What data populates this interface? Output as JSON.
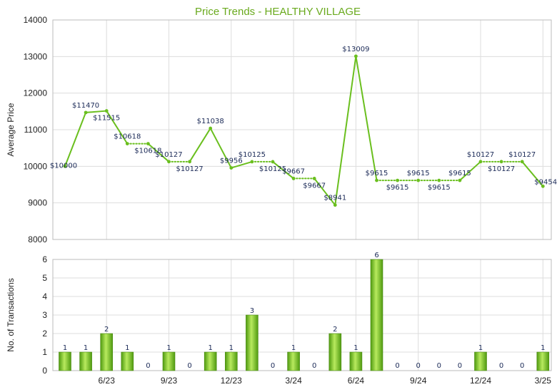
{
  "chart_data": [
    {
      "type": "line",
      "title": "Price Trends - HEALTHY VILLAGE",
      "ylabel": "Average Price",
      "ylim": [
        8000,
        14000
      ],
      "yticks": [
        "8000",
        "9000",
        "10000",
        "11000",
        "12000",
        "13000",
        "14000"
      ],
      "grid": true,
      "series": [
        {
          "color": "#6abf1e",
          "x": [
            "2023-04",
            "2023-05",
            "2023-06",
            "2023-07",
            "2023-08",
            "2023-09",
            "2023-10",
            "2023-11",
            "2023-12",
            "2024-01",
            "2024-02",
            "2024-03",
            "2024-04",
            "2024-05",
            "2024-06",
            "2024-07",
            "2024-08",
            "2024-09",
            "2024-10",
            "2024-11",
            "2024-12",
            "2025-01",
            "2025-02",
            "2025-03"
          ],
          "values": [
            10000,
            11470,
            11515,
            10618,
            10618,
            10127,
            10127,
            11038,
            9956,
            10125,
            10125,
            9667,
            9667,
            8941,
            13009,
            9615,
            9615,
            9615,
            9615,
            9615,
            10127,
            10127,
            10127,
            9454
          ],
          "labels": [
            "$10000",
            "$11470",
            "$11515",
            "$10618",
            "$10618",
            "$10127",
            "$10127",
            "$11038",
            "$9956",
            "$10125",
            "$10125",
            "$9667",
            "$9667",
            "$8941",
            "$13009",
            "$9615",
            "$9615",
            "$9615",
            "$9615",
            "$9615",
            "$10127",
            "$10127",
            "$10127",
            "$9454"
          ],
          "dotted_segments": [
            3,
            5,
            9,
            11,
            15,
            16,
            17,
            18,
            20,
            21
          ]
        }
      ]
    },
    {
      "type": "bar",
      "ylabel": "No. of Transactions",
      "ylim": [
        0,
        6
      ],
      "yticks": [
        "0",
        "1",
        "2",
        "3",
        "4",
        "5",
        "6"
      ],
      "categories": [
        "2023-04",
        "2023-05",
        "2023-06",
        "2023-07",
        "2023-08",
        "2023-09",
        "2023-10",
        "2023-11",
        "2023-12",
        "2024-01",
        "2024-02",
        "2024-03",
        "2024-04",
        "2024-05",
        "2024-06",
        "2024-07",
        "2024-08",
        "2024-09",
        "2024-10",
        "2024-11",
        "2024-12",
        "2025-01",
        "2025-02",
        "2025-03"
      ],
      "values": [
        1,
        1,
        2,
        1,
        0,
        1,
        0,
        1,
        1,
        3,
        0,
        1,
        0,
        2,
        1,
        6,
        0,
        0,
        0,
        0,
        1,
        0,
        0,
        1
      ],
      "xtick_labels": [
        "6/23",
        "9/23",
        "12/23",
        "3/24",
        "6/24",
        "9/24",
        "12/24",
        "3/25"
      ],
      "xtick_index": [
        2,
        5,
        8,
        11,
        14,
        17,
        20,
        23
      ],
      "bar_color": "#6abf1e",
      "grid": true
    }
  ]
}
